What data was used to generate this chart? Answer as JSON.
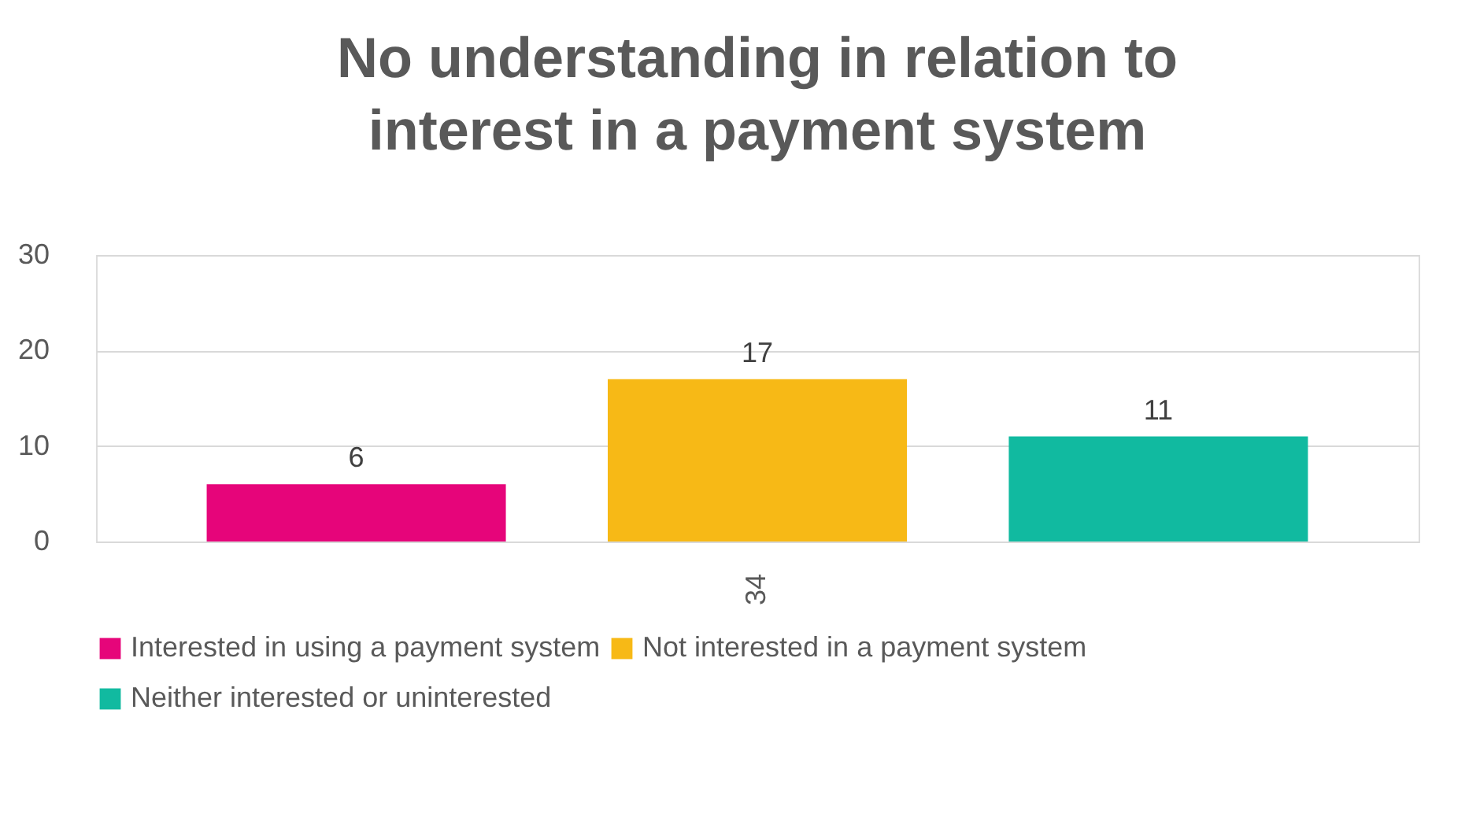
{
  "chart_data": {
    "type": "bar",
    "title": "No understanding in relation to interest in a payment system",
    "categories": [
      "34"
    ],
    "series": [
      {
        "name": "Interested in using a payment system",
        "color": "#e6057a",
        "values": [
          6
        ]
      },
      {
        "name": "Not interested in a payment system",
        "color": "#f7b916",
        "values": [
          17
        ]
      },
      {
        "name": "Neither interested or uninterested",
        "color": "#11baa0",
        "values": [
          11
        ]
      }
    ],
    "ylim": [
      0,
      30
    ],
    "yticks": [
      0,
      10,
      20,
      30
    ],
    "grid": "y",
    "legend": "bottom",
    "data_labels": true
  }
}
